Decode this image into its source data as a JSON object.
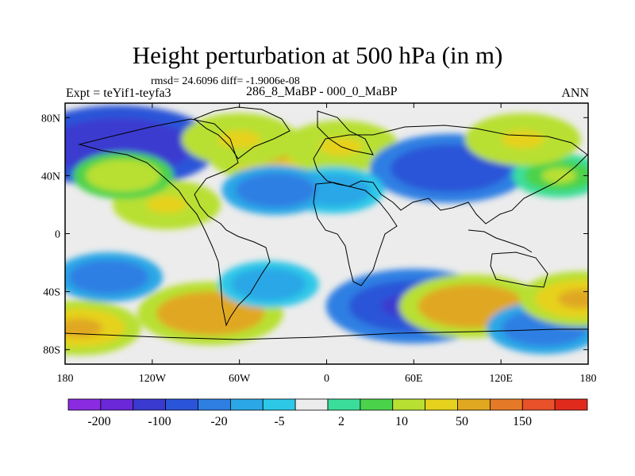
{
  "plot": {
    "title": "Height perturbation at 500 hPa (in m)",
    "stats": "rmsd= 24.6096 diff= -1.9006e-08",
    "experiment": "Expt = teYif1-teyfa3",
    "comparison": "286_8_MaBP - 000_0_MaBP",
    "season": "ANN"
  },
  "axes": {
    "lat_labels": [
      "80N",
      "40N",
      "0",
      "40S",
      "80S"
    ],
    "lon_labels": [
      "180",
      "120W",
      "60W",
      "0",
      "60E",
      "120E",
      "180"
    ]
  },
  "colorbar": {
    "colors": [
      "#8a2be2",
      "#6a28d8",
      "#3a3ad0",
      "#2a55d8",
      "#2f7fe3",
      "#2ba7e6",
      "#2dc8e8",
      "#ececec",
      "#3ade9a",
      "#4bd24b",
      "#b8e032",
      "#e6d21e",
      "#e0a820",
      "#e47a27",
      "#e8512a",
      "#e02a1c"
    ],
    "labels": [
      "-200",
      "-100",
      "-20",
      "-5",
      "2",
      "10",
      "50",
      "150"
    ]
  },
  "chart_data": {
    "type": "heatmap",
    "title": "Height perturbation at 500 hPa (in m)",
    "subtitle": "286_8_MaBP - 000_0_MaBP",
    "xlim": [
      -180,
      180
    ],
    "ylim": [
      -90,
      90
    ],
    "levels": [
      -200,
      -100,
      -20,
      -5,
      2,
      10,
      50,
      150
    ],
    "anomalies": [
      {
        "lon": -143,
        "lat": 60,
        "value": -150,
        "kind": "low"
      },
      {
        "lon": -110,
        "lat": 20,
        "value": 30,
        "kind": "high"
      },
      {
        "lon": -140,
        "lat": 40,
        "value": 20,
        "kind": "high"
      },
      {
        "lon": -40,
        "lat": 55,
        "value": 50,
        "kind": "high"
      },
      {
        "lon": -60,
        "lat": 65,
        "value": 40,
        "kind": "high"
      },
      {
        "lon": 10,
        "lat": 60,
        "value": 40,
        "kind": "high"
      },
      {
        "lon": 85,
        "lat": 45,
        "value": -100,
        "kind": "low"
      },
      {
        "lon": 5,
        "lat": 30,
        "value": -20,
        "kind": "low"
      },
      {
        "lon": -35,
        "lat": 30,
        "value": -30,
        "kind": "low"
      },
      {
        "lon": 160,
        "lat": 40,
        "value": 10,
        "kind": "high"
      },
      {
        "lon": 135,
        "lat": 65,
        "value": 40,
        "kind": "high"
      },
      {
        "lon": 60,
        "lat": -50,
        "value": -120,
        "kind": "low"
      },
      {
        "lon": -80,
        "lat": -55,
        "value": 80,
        "kind": "high"
      },
      {
        "lon": 100,
        "lat": -50,
        "value": 80,
        "kind": "high"
      },
      {
        "lon": -150,
        "lat": -30,
        "value": -30,
        "kind": "low"
      },
      {
        "lon": -40,
        "lat": -35,
        "value": -20,
        "kind": "low"
      },
      {
        "lon": 150,
        "lat": -65,
        "value": -40,
        "kind": "low"
      },
      {
        "lon": 175,
        "lat": -45,
        "value": 50,
        "kind": "high"
      },
      {
        "lon": -170,
        "lat": -65,
        "value": 50,
        "kind": "high"
      }
    ]
  }
}
